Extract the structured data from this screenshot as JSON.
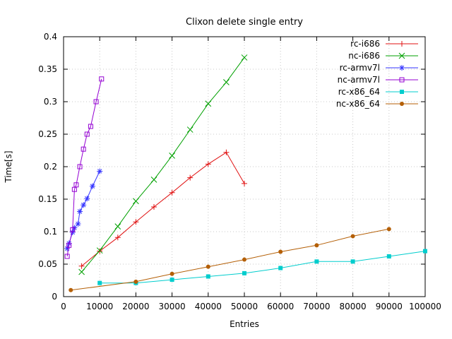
{
  "chart_data": {
    "type": "line",
    "title": "Clixon delete single entry",
    "xlabel": "Entries",
    "ylabel": "Time[s]",
    "xlim": [
      0,
      100000
    ],
    "ylim": [
      0,
      0.4
    ],
    "grid": true,
    "legend_position": "top-right",
    "xticks": [
      0,
      10000,
      20000,
      30000,
      40000,
      50000,
      60000,
      70000,
      80000,
      90000,
      100000
    ],
    "xtick_labels": [
      "0",
      "10000",
      "20000",
      "30000",
      "40000",
      "50000",
      "60000",
      "70000",
      "80000",
      "90000",
      "100000"
    ],
    "yticks": [
      0,
      0.05,
      0.1,
      0.15,
      0.2,
      0.25,
      0.3,
      0.35,
      0.4
    ],
    "ytick_labels": [
      "0",
      "0.05",
      "0.1",
      "0.15",
      "0.2",
      "0.25",
      "0.3",
      "0.35",
      "0.4"
    ],
    "grid_color": "#c8c8c8",
    "border_color": "#000000",
    "series": [
      {
        "name": "rc-i686",
        "color": "#e01010",
        "marker": "plus",
        "points": [
          [
            5000,
            0.047
          ],
          [
            10000,
            0.07
          ],
          [
            15000,
            0.091
          ],
          [
            20000,
            0.115
          ],
          [
            25000,
            0.138
          ],
          [
            30000,
            0.16
          ],
          [
            35000,
            0.183
          ],
          [
            40000,
            0.204
          ],
          [
            45000,
            0.222
          ],
          [
            50000,
            0.174
          ]
        ]
      },
      {
        "name": "nc-i686",
        "color": "#00a000",
        "marker": "cross",
        "points": [
          [
            5000,
            0.038
          ],
          [
            10000,
            0.071
          ],
          [
            15000,
            0.108
          ],
          [
            20000,
            0.147
          ],
          [
            25000,
            0.18
          ],
          [
            30000,
            0.217
          ],
          [
            35000,
            0.257
          ],
          [
            40000,
            0.297
          ],
          [
            45000,
            0.33
          ],
          [
            50000,
            0.368
          ]
        ]
      },
      {
        "name": "rc-armv7l",
        "color": "#3333ff",
        "marker": "star",
        "points": [
          [
            1000,
            0.074
          ],
          [
            1500,
            0.082
          ],
          [
            2500,
            0.099
          ],
          [
            3000,
            0.106
          ],
          [
            4000,
            0.112
          ],
          [
            4500,
            0.131
          ],
          [
            5500,
            0.141
          ],
          [
            6500,
            0.151
          ],
          [
            8000,
            0.17
          ],
          [
            10000,
            0.193
          ]
        ]
      },
      {
        "name": "nc-armv7l",
        "color": "#9400d3",
        "marker": "square-open",
        "points": [
          [
            1000,
            0.062
          ],
          [
            1500,
            0.079
          ],
          [
            2500,
            0.103
          ],
          [
            3000,
            0.165
          ],
          [
            3500,
            0.172
          ],
          [
            4500,
            0.2
          ],
          [
            5500,
            0.227
          ],
          [
            6500,
            0.25
          ],
          [
            7500,
            0.262
          ],
          [
            9000,
            0.3
          ],
          [
            10500,
            0.335
          ]
        ]
      },
      {
        "name": "rc-x86_64",
        "color": "#00cdcd",
        "marker": "square-filled",
        "points": [
          [
            10000,
            0.021
          ],
          [
            20000,
            0.021
          ],
          [
            30000,
            0.026
          ],
          [
            40000,
            0.031
          ],
          [
            50000,
            0.036
          ],
          [
            60000,
            0.044
          ],
          [
            70000,
            0.054
          ],
          [
            80000,
            0.054
          ],
          [
            90000,
            0.062
          ],
          [
            100000,
            0.07
          ]
        ]
      },
      {
        "name": "nc-x86_64",
        "color": "#b45f06",
        "marker": "circle-filled",
        "points": [
          [
            2000,
            0.01
          ],
          [
            20000,
            0.023
          ],
          [
            30000,
            0.035
          ],
          [
            40000,
            0.046
          ],
          [
            50000,
            0.057
          ],
          [
            60000,
            0.069
          ],
          [
            70000,
            0.079
          ],
          [
            80000,
            0.093
          ],
          [
            90000,
            0.104
          ]
        ]
      }
    ]
  }
}
